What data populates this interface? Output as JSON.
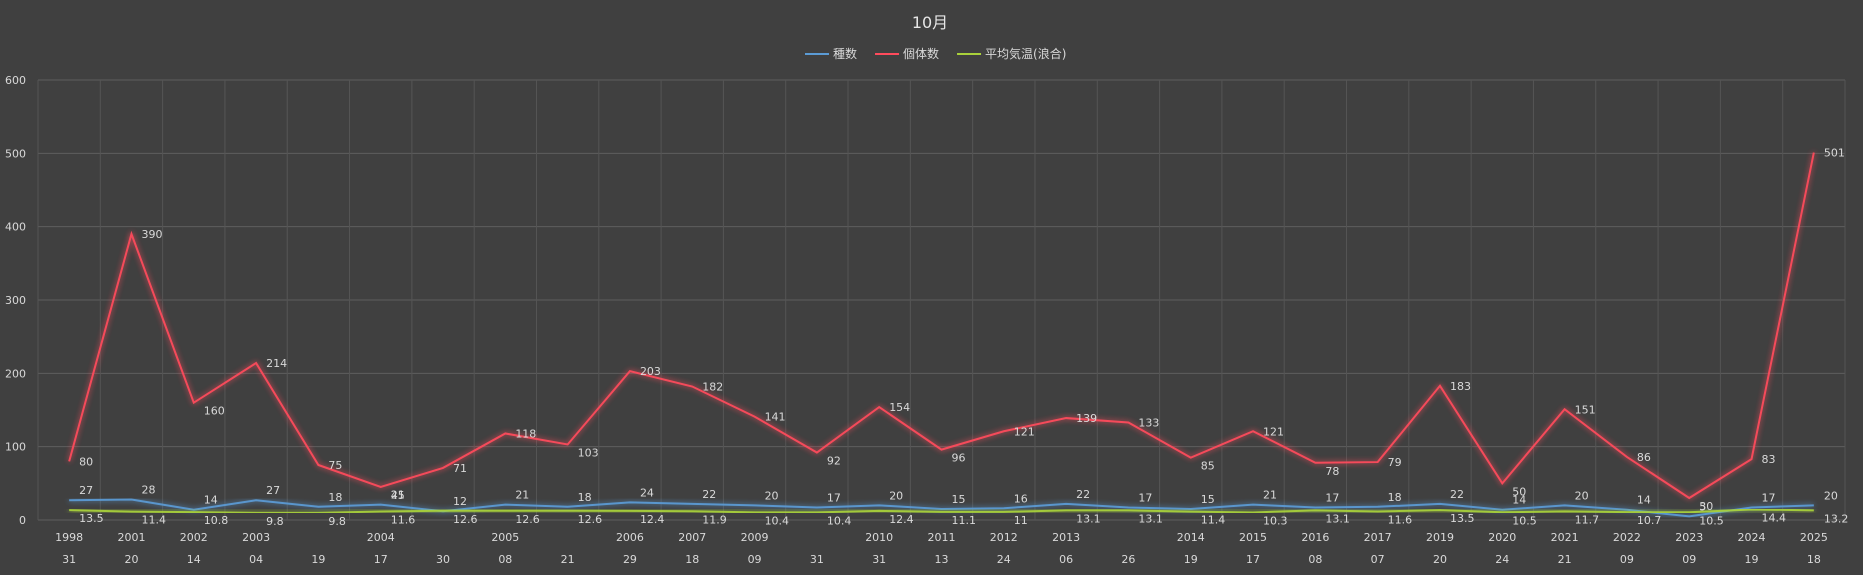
{
  "chart_data": {
    "type": "line",
    "title": "10月",
    "legend_position": "top",
    "grid": true,
    "ylim": [
      0,
      600
    ],
    "yticks": [
      0,
      100,
      200,
      300,
      400,
      500,
      600
    ],
    "x_years": [
      "1998",
      "2001",
      "2002",
      "2003",
      "",
      "2004",
      "",
      "2005",
      "",
      "2006",
      "2007",
      "2009",
      "",
      "2010",
      "2011",
      "2012",
      "2013",
      "",
      "2014",
      "2015",
      "2016",
      "2017",
      "2019",
      "2020",
      "2021",
      "2022",
      "2023",
      "2024",
      "2025"
    ],
    "x_days": [
      "31",
      "20",
      "14",
      "04",
      "19",
      "17",
      "30",
      "08",
      "21",
      "29",
      "18",
      "09",
      "31",
      "31",
      "13",
      "24",
      "06",
      "26",
      "19",
      "17",
      "08",
      "07",
      "20",
      "24",
      "21",
      "09",
      "09",
      "19",
      "18"
    ],
    "series": [
      {
        "name": "種数",
        "color": "#5b9bd5",
        "values": [
          27,
          28,
          14,
          27,
          18,
          21,
          12,
          21,
          18,
          24,
          22,
          20,
          17,
          20,
          15,
          16,
          22,
          17,
          15,
          21,
          17,
          18,
          22,
          14,
          20,
          14,
          5,
          17,
          20
        ]
      },
      {
        "name": "個体数",
        "color": "#ff4b5c",
        "values": [
          80,
          390,
          160,
          214,
          75,
          45,
          71,
          118,
          103,
          203,
          182,
          141,
          92,
          154,
          96,
          121,
          139,
          133,
          85,
          121,
          78,
          79,
          183,
          50,
          151,
          86,
          30,
          83,
          501
        ]
      },
      {
        "name": "平均気温(浪合)",
        "color": "#a9d13b",
        "values": [
          13.5,
          11.4,
          10.8,
          9.8,
          9.8,
          11.6,
          12.6,
          12.6,
          12.6,
          12.4,
          11.9,
          10.4,
          10.4,
          12.4,
          11.1,
          11,
          13.1,
          13.1,
          11.4,
          10.3,
          13.1,
          11.6,
          13.5,
          10.5,
          11.7,
          10.7,
          10.5,
          14.4,
          13.2
        ]
      }
    ]
  }
}
